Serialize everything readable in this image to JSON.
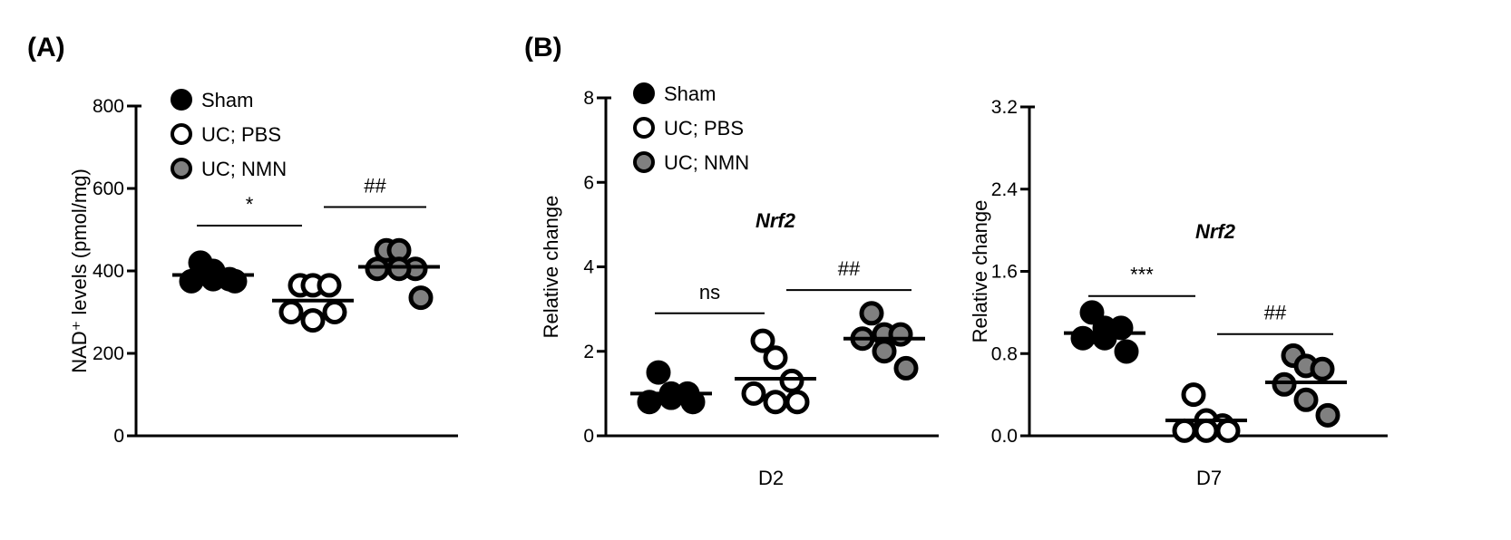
{
  "groups": [
    {
      "name": "Sham",
      "fill": "#000000"
    },
    {
      "name": "UC; PBS",
      "fill": "#ffffff"
    },
    {
      "name": "UC; NMN",
      "fill": "#808080"
    }
  ],
  "chart_data": [
    {
      "type": "scatter",
      "panel_label": "(A)",
      "ylabel": "NAD⁺ levels (pmol/mg)",
      "ylim": [
        0,
        800
      ],
      "yticks": [
        0,
        200,
        400,
        600,
        800
      ],
      "ytick_labels": [
        "0",
        "200",
        "400",
        "600",
        "800"
      ],
      "xlabel": "",
      "gene": "",
      "legend": "top-left",
      "series": [
        {
          "group": "Sham",
          "values": [
            420,
            400,
            380,
            375,
            380,
            375
          ],
          "mean": 390
        },
        {
          "group": "UC; PBS",
          "values": [
            365,
            365,
            365,
            300,
            280,
            300
          ],
          "mean": 328
        },
        {
          "group": "UC; NMN",
          "values": [
            450,
            450,
            405,
            405,
            405,
            335
          ],
          "mean": 410
        }
      ],
      "annotations": [
        {
          "from": 0,
          "to": 1,
          "label": "*",
          "y": 510
        },
        {
          "from": 1,
          "to": 2,
          "label": "##",
          "y": 555
        }
      ]
    },
    {
      "type": "scatter",
      "panel_label": "(B)",
      "ylabel": "Relative change",
      "ylim": [
        0,
        8
      ],
      "yticks": [
        0,
        2,
        4,
        6,
        8
      ],
      "ytick_labels": [
        "0",
        "2",
        "4",
        "6",
        "8"
      ],
      "xlabel": "D2",
      "gene": "Nrf2",
      "legend": "top-left",
      "series": [
        {
          "group": "Sham",
          "values": [
            1.5,
            1.0,
            1.0,
            0.8,
            0.9,
            0.8
          ],
          "mean": 1.0
        },
        {
          "group": "UC; PBS",
          "values": [
            2.25,
            1.85,
            1.3,
            1.0,
            0.8,
            0.8
          ],
          "mean": 1.35
        },
        {
          "group": "UC; NMN",
          "values": [
            2.9,
            2.4,
            2.4,
            2.3,
            2.0,
            1.6
          ],
          "mean": 2.3
        }
      ],
      "annotations": [
        {
          "from": 0,
          "to": 1,
          "label": "ns",
          "y": 2.9
        },
        {
          "from": 1,
          "to": 2,
          "label": "##",
          "y": 3.45
        }
      ]
    },
    {
      "type": "scatter",
      "panel_label": "",
      "ylabel": "Relative change",
      "ylim": [
        0,
        3.2
      ],
      "yticks": [
        0,
        0.8,
        1.6,
        2.4,
        3.2
      ],
      "ytick_labels": [
        "0.0",
        "0.8",
        "1.6",
        "2.4",
        "3.2"
      ],
      "xlabel": "D7",
      "gene": "Nrf2",
      "legend": "none",
      "series": [
        {
          "group": "Sham",
          "values": [
            1.2,
            1.05,
            1.05,
            0.95,
            0.95,
            0.82
          ],
          "mean": 1.0
        },
        {
          "group": "UC; PBS",
          "values": [
            0.4,
            0.15,
            0.1,
            0.05,
            0.05,
            0.05
          ],
          "mean": 0.15
        },
        {
          "group": "UC; NMN",
          "values": [
            0.78,
            0.68,
            0.65,
            0.5,
            0.35,
            0.2
          ],
          "mean": 0.52
        }
      ],
      "annotations": [
        {
          "from": 0,
          "to": 1,
          "label": "***",
          "y": 1.36
        },
        {
          "from": 1,
          "to": 2,
          "label": "##",
          "y": 0.99
        }
      ]
    }
  ]
}
